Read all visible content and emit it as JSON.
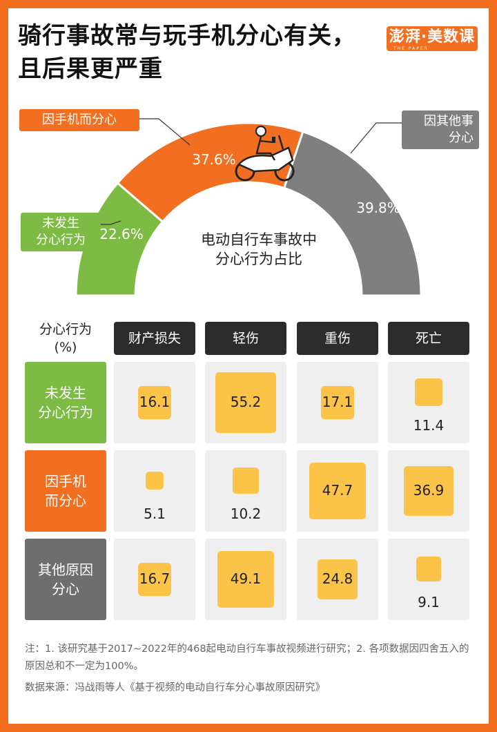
{
  "title": "骑行事故常与玩手机分心有关，且后果更严重",
  "logo": {
    "text": "澎湃·美数课",
    "small": "THE PAPER"
  },
  "chart_data": [
    {
      "type": "pie",
      "title": "电动自行车事故中分心行为占比",
      "title_lines": [
        "电动自行车事故中",
        "分心行为占比"
      ],
      "slices": [
        {
          "label": "未发生分心行为",
          "label_lines": [
            "未发生",
            "分心行为"
          ],
          "value": 22.6,
          "value_label": "22.6%",
          "color": "#7dbb44"
        },
        {
          "label": "因手机而分心",
          "label_lines": [
            "因手机而分心"
          ],
          "value": 37.6,
          "value_label": "37.6%",
          "color": "#f26f21"
        },
        {
          "label": "因其他事分心",
          "label_lines": [
            "因其他事",
            "分心"
          ],
          "value": 39.8,
          "value_label": "39.8%",
          "color": "#7f7f7f"
        }
      ]
    },
    {
      "type": "table",
      "corner_label": [
        "分心行为",
        "(%)"
      ],
      "columns": [
        "财产损失",
        "轻伤",
        "重伤",
        "死亡"
      ],
      "rows": [
        {
          "label": "未发生分心行为",
          "label_lines": [
            "未发生",
            "分心行为"
          ],
          "color": "#7dbb44",
          "values": [
            16.1,
            55.2,
            17.1,
            11.4
          ]
        },
        {
          "label": "因手机而分心",
          "label_lines": [
            "因手机",
            "而分心"
          ],
          "color": "#f26f21",
          "values": [
            5.1,
            10.2,
            47.7,
            36.9
          ]
        },
        {
          "label": "其他原因分心",
          "label_lines": [
            "其他原因",
            "分心"
          ],
          "color": "#6e6e6e",
          "values": [
            16.7,
            49.1,
            24.8,
            9.1
          ]
        }
      ]
    }
  ],
  "notes": [
    "注：1. 该研究基于2017~2022年的468起电动自行车事故视频进行研究；2. 各项数据因四舍五入的原因总和不一定为100%。",
    "数据来源：冯战雨等人《基于视频的电动自行车分心事故原因研究》"
  ],
  "colors": {
    "frame": "#f26f21",
    "square": "#fcc349",
    "cell": "#efefef",
    "header": "#2c2c2c"
  }
}
